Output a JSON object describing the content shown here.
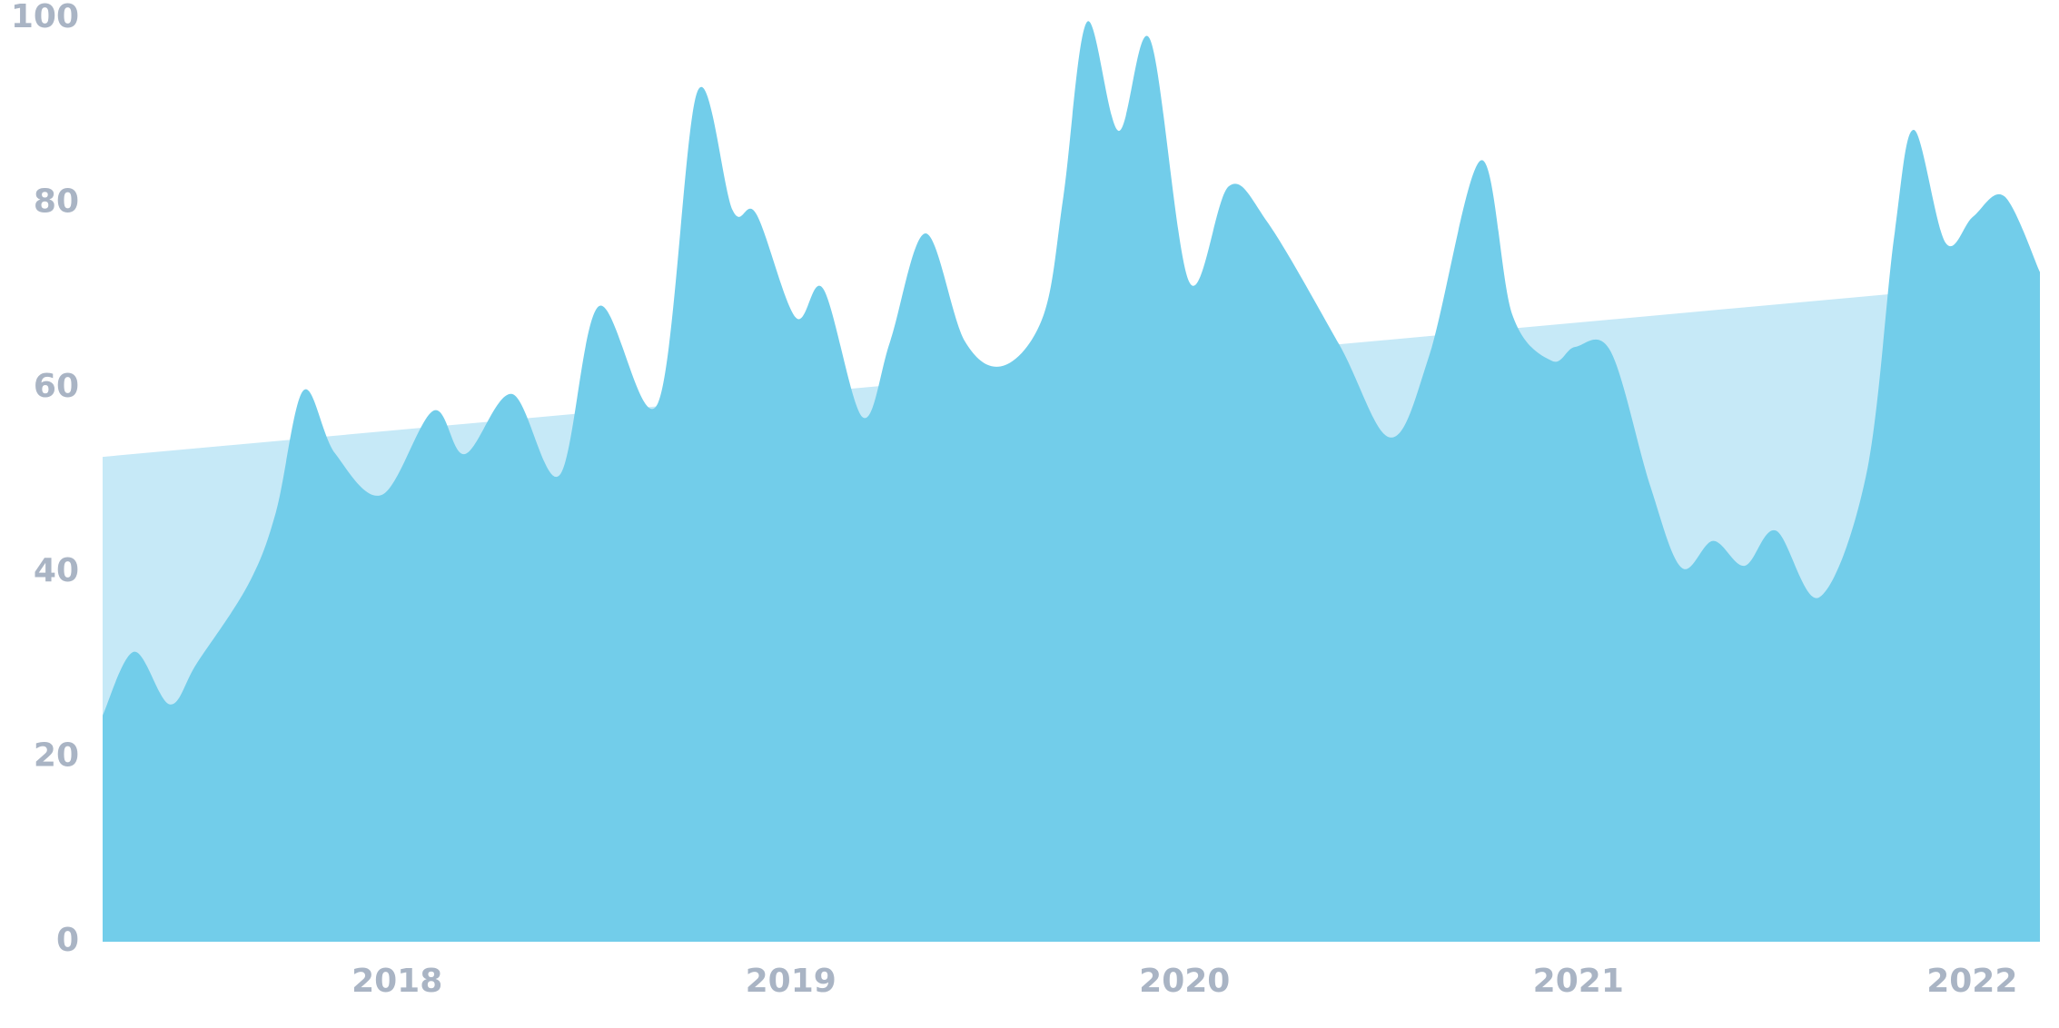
{
  "chart_data": {
    "type": "area",
    "series": [
      {
        "color": "#c6e9f7",
        "x": [
          2017.16,
          2022.08
        ],
        "values": [
          52.5,
          71.6
        ]
      },
      {
        "color": "#72cdea",
        "x": [
          2017.16,
          2017.24,
          2017.33,
          2017.4,
          2017.53,
          2017.6,
          2017.67,
          2017.75,
          2017.87,
          2018.0,
          2018.08,
          2018.2,
          2018.32,
          2018.42,
          2018.57,
          2018.67,
          2018.76,
          2018.82,
          2018.92,
          2018.99,
          2019.09,
          2019.16,
          2019.25,
          2019.35,
          2019.45,
          2019.55,
          2019.6,
          2019.66,
          2019.74,
          2019.82,
          2019.92,
          2020.02,
          2020.12,
          2020.3,
          2020.43,
          2020.53,
          2020.66,
          2020.74,
          2020.84,
          2020.9,
          2020.99,
          2021.09,
          2021.17,
          2021.25,
          2021.33,
          2021.41,
          2021.52,
          2021.64,
          2021.71,
          2021.76,
          2021.84,
          2021.91,
          2021.99,
          2022.08
        ],
        "values": [
          24.5,
          31.4,
          25.7,
          30.2,
          38.7,
          46.5,
          59.7,
          52.9,
          48.4,
          57.5,
          52.8,
          59.3,
          50.5,
          68.8,
          58.3,
          92.0,
          79.2,
          78.8,
          67.6,
          70.7,
          56.8,
          65.0,
          76.7,
          65.0,
          62.4,
          67.9,
          80.7,
          99.6,
          87.8,
          97.7,
          71.4,
          81.8,
          77.8,
          64.7,
          54.6,
          63.6,
          84.6,
          67.9,
          62.9,
          64.4,
          63.9,
          49.4,
          40.5,
          43.4,
          40.7,
          44.5,
          37.3,
          50.8,
          76.4,
          87.9,
          75.7,
          78.5,
          80.7,
          72.5
        ]
      }
    ],
    "xlim": [
      2017.16,
      2022.08
    ],
    "xticks": [
      2018,
      2019,
      2020,
      2021,
      2022
    ],
    "ylim": [
      0,
      100
    ],
    "yticks": [
      0,
      20,
      40,
      60,
      80,
      100
    ]
  }
}
